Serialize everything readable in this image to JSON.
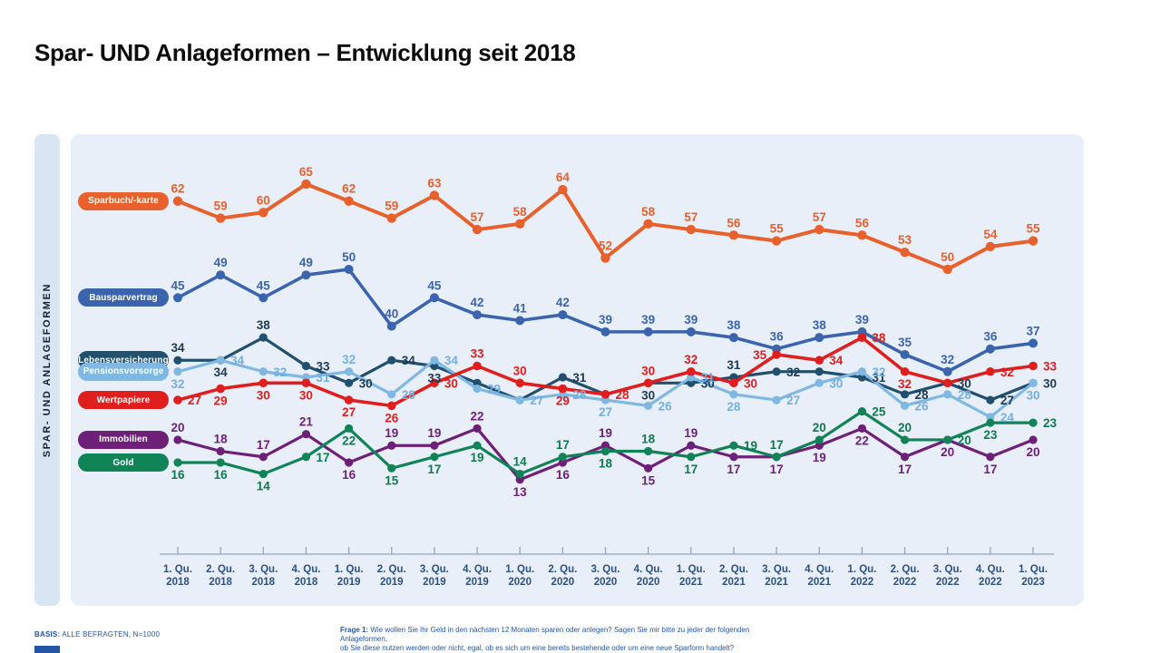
{
  "title": "Spar- UND Anlageformen – Entwicklung seit 2018",
  "sidebar_label": "SPAR-  UND  ANLAGEFORMEN",
  "footer": {
    "basis_label": "BASIS:",
    "basis_text": " ALLE BEFRAGTEN, N=1000",
    "frage_label": "Frage 1:",
    "frage_line1": " Wie wollen Sie Ihr Geld in den nächsten 12 Monaten sparen oder anlegen? Sagen Sie mir bitte zu jeder der folgenden Anlageformen,",
    "frage_line2": "ob Sie diese nutzen werden oder nicht, egal, ob es sich um eine bereits bestehende oder um eine neue Sparform handelt?"
  },
  "colors": {
    "panel": "#e9eff8",
    "side_strip": "#d8e6f4",
    "axis_line": "#8fa6be",
    "axis_label": "#2d5080",
    "footer_text": "#2456a4"
  },
  "chart_data": {
    "type": "line",
    "grid": false,
    "legend_position": "left",
    "ylim": [
      10,
      70
    ],
    "categories": [
      "1. Qu. 2018",
      "2. Qu. 2018",
      "3. Qu. 2018",
      "4. Qu. 2018",
      "1. Qu. 2019",
      "2. Qu. 2019",
      "3. Qu. 2019",
      "4. Qu. 2019",
      "1. Qu. 2020",
      "2. Qu. 2020",
      "3. Qu. 2020",
      "4. Qu. 2020",
      "1. Qu. 2021",
      "2. Qu. 2021",
      "3. Qu. 2021",
      "4. Qu. 2021",
      "1. Qu. 2022",
      "2. Qu. 2022",
      "3. Qu. 2022",
      "4. Qu. 2022",
      "1. Qu. 2023"
    ],
    "x_tick_line1": [
      "1. Qu.",
      "2. Qu.",
      "3. Qu.",
      "4. Qu.",
      "1. Qu.",
      "2. Qu.",
      "3. Qu.",
      "4. Qu.",
      "1. Qu.",
      "2. Qu.",
      "3. Qu.",
      "4. Qu.",
      "1. Qu.",
      "2. Qu.",
      "3. Qu.",
      "4. Qu.",
      "1. Qu.",
      "2. Qu.",
      "3. Qu.",
      "4. Qu.",
      "1. Qu."
    ],
    "x_tick_line2": [
      "2018",
      "2018",
      "2018",
      "2018",
      "2019",
      "2019",
      "2019",
      "2019",
      "2020",
      "2020",
      "2020",
      "2020",
      "2021",
      "2021",
      "2021",
      "2021",
      "2022",
      "2022",
      "2022",
      "2022",
      "2023"
    ],
    "series": [
      {
        "key": "sparbuch-karte",
        "name": "Sparbuch/-karte",
        "color": "#e8612c",
        "label_color": "#e8612c",
        "line_width": 4,
        "point_r": 5.2,
        "values": [
          62,
          59,
          60,
          65,
          62,
          59,
          63,
          57,
          58,
          64,
          52,
          58,
          57,
          56,
          55,
          57,
          56,
          53,
          50,
          54,
          55
        ],
        "label_pos": [
          "a",
          "a",
          "a",
          "a",
          "a",
          "a",
          "a",
          "a",
          "a",
          "a",
          "a",
          "a",
          "a",
          "a",
          "a",
          "a",
          "a",
          "a",
          "a",
          "a",
          "a"
        ]
      },
      {
        "key": "bausparvertrag",
        "name": "Bausparvertrag",
        "color": "#3b64ae",
        "label_color": "#3b64ae",
        "line_width": 3.6,
        "point_r": 5,
        "values": [
          45,
          49,
          45,
          49,
          50,
          40,
          45,
          42,
          41,
          42,
          39,
          39,
          39,
          38,
          36,
          38,
          39,
          35,
          32,
          36,
          37
        ],
        "label_pos": [
          "a",
          "a",
          "a",
          "a",
          "a",
          "a",
          "a",
          "a",
          "a",
          "a",
          "a",
          "a",
          "a",
          "a",
          "a",
          "a",
          "a",
          "a",
          "a",
          "a",
          "a"
        ]
      },
      {
        "key": "lebensversicherung",
        "name": "Lebensversicherung",
        "color": "#21506f",
        "label_color": "#1e3a52",
        "line_width": 3.2,
        "point_r": 4.6,
        "values": [
          34,
          34,
          38,
          33,
          30,
          34,
          33,
          30,
          27,
          31,
          28,
          30,
          30,
          31,
          32,
          32,
          31,
          28,
          30,
          27,
          30
        ],
        "label_pos": [
          "a",
          "b",
          "a",
          "r",
          "r",
          "r",
          "b",
          "h",
          "h",
          "r",
          "h",
          "b",
          "r",
          "a",
          "r",
          "h",
          "r",
          "r",
          "r",
          "r",
          "r"
        ]
      },
      {
        "key": "pensionsvorsorge",
        "name": "Pensionsvorsorge",
        "color": "#7fb8e3",
        "label_color": "#74afdf",
        "line_width": 3.2,
        "point_r": 4.6,
        "values": [
          32,
          34,
          32,
          31,
          32,
          28,
          34,
          29,
          27,
          28,
          27,
          26,
          31,
          28,
          27,
          30,
          32,
          26,
          28,
          24,
          30
        ],
        "label_pos": [
          "b",
          "r",
          "r",
          "r",
          "a",
          "r",
          "r",
          "r",
          "r",
          "r",
          "b",
          "r",
          "r",
          "b",
          "r",
          "r",
          "r",
          "r",
          "r",
          "r",
          "b"
        ]
      },
      {
        "key": "immobilien",
        "name": "Immobilien",
        "color": "#6e2078",
        "label_color": "#6e2078",
        "line_width": 3.2,
        "point_r": 4.6,
        "values": [
          20,
          18,
          17,
          21,
          16,
          19,
          19,
          22,
          13,
          16,
          19,
          15,
          19,
          17,
          17,
          19,
          22,
          17,
          20,
          17,
          20
        ],
        "label_pos": [
          "a",
          "a",
          "a",
          "a",
          "b",
          "a",
          "a",
          "a",
          "b",
          "b",
          "a",
          "b",
          "a",
          "b",
          "b",
          "b",
          "b",
          "b",
          "b",
          "b",
          "b"
        ]
      },
      {
        "key": "gold",
        "name": "Gold",
        "color": "#108457",
        "label_color": "#0e7a4e",
        "line_width": 3.2,
        "point_r": 4.6,
        "values": [
          16,
          16,
          14,
          17,
          22,
          15,
          17,
          19,
          14,
          17,
          18,
          18,
          17,
          19,
          17,
          20,
          25,
          20,
          20,
          23,
          23
        ],
        "label_pos": [
          "b",
          "b",
          "b",
          "r",
          "b",
          "b",
          "b",
          "b",
          "a",
          "a",
          "b",
          "a",
          "b",
          "r",
          "a",
          "a",
          "r",
          "a",
          "r",
          "b",
          "r"
        ]
      },
      {
        "key": "wertpapiere",
        "name": "Wertpapiere",
        "color": "#e11e1e",
        "label_color": "#e11e1e",
        "line_width": 3.6,
        "point_r": 4.8,
        "values": [
          27,
          29,
          30,
          30,
          27,
          26,
          30,
          33,
          30,
          29,
          28,
          30,
          32,
          30,
          35,
          34,
          38,
          32,
          30,
          32,
          33
        ],
        "label_pos": [
          "r",
          "b",
          "b",
          "b",
          "b",
          "b",
          "r",
          "a",
          "a",
          "b",
          "r",
          "a",
          "a",
          "r",
          "l",
          "r",
          "r",
          "b",
          "h",
          "r",
          "r"
        ]
      }
    ],
    "legend_order": [
      "sparbuch-karte",
      "bausparvertrag",
      "lebensversicherung",
      "pensionsvorsorge",
      "wertpapiere",
      "immobilien",
      "gold"
    ]
  }
}
